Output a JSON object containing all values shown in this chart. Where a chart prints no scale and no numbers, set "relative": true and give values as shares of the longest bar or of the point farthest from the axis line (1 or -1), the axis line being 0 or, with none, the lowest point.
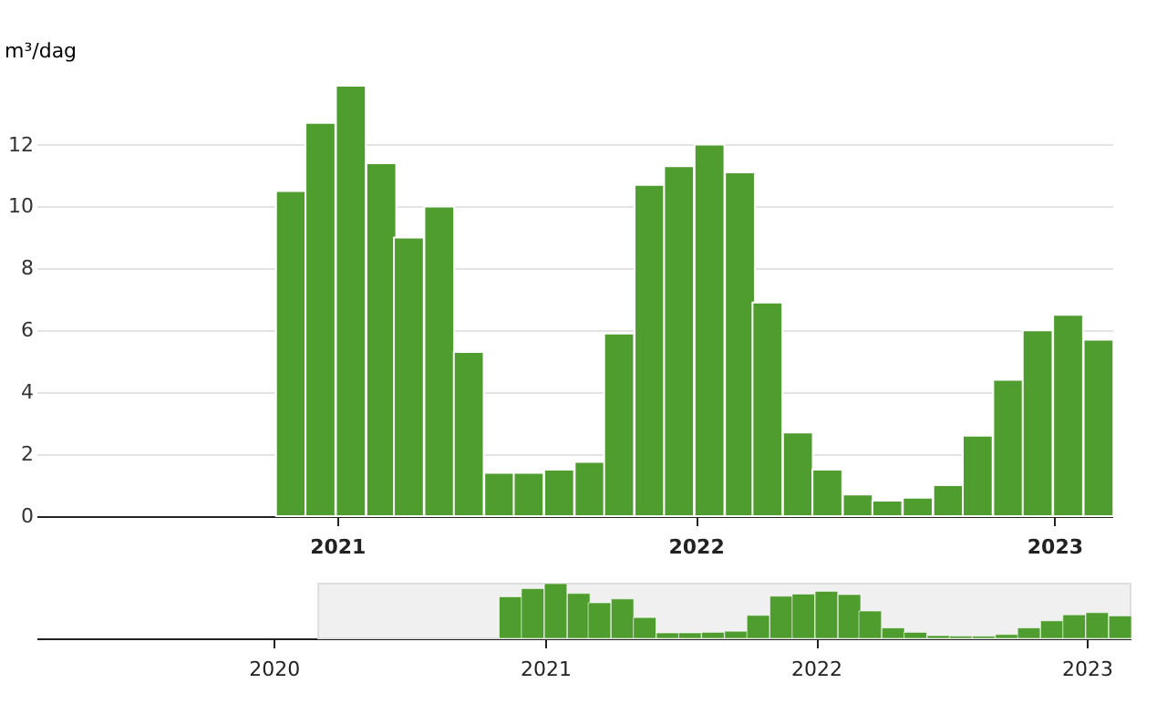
{
  "chart_data": [
    {
      "type": "bar",
      "ylabel": "m³/dag",
      "x": [
        "2020-11-15",
        "2020-12-15",
        "2021-01-15",
        "2021-02-15",
        "2021-03-15",
        "2021-04-15",
        "2021-05-15",
        "2021-06-15",
        "2021-07-15",
        "2021-08-15",
        "2021-09-15",
        "2021-10-15",
        "2021-11-15",
        "2021-12-15",
        "2022-01-15",
        "2022-02-15",
        "2022-03-15",
        "2022-04-15",
        "2022-05-15",
        "2022-06-15",
        "2022-07-15",
        "2022-08-15",
        "2022-09-15",
        "2022-10-15",
        "2022-11-15",
        "2022-12-15",
        "2023-01-15",
        "2023-02-15"
      ],
      "values": [
        10.5,
        12.7,
        13.9,
        11.4,
        9.0,
        10.0,
        5.3,
        1.4,
        1.4,
        1.5,
        1.75,
        5.9,
        10.7,
        11.3,
        12.0,
        11.1,
        6.9,
        2.7,
        1.5,
        0.7,
        0.5,
        0.6,
        1.0,
        2.6,
        4.4,
        6.0,
        6.5,
        5.7
      ],
      "color": "#4f9d2f",
      "xlim": [
        "2020-03-01",
        "2023-03-01"
      ],
      "xticks": [
        "2021",
        "2022",
        "2023"
      ],
      "ylim": [
        0,
        13.9
      ],
      "yticks": [
        0,
        2,
        4,
        6,
        8,
        10,
        12
      ],
      "grid": "y"
    },
    {
      "type": "bar",
      "relative": true,
      "x": [
        "2020-11-15",
        "2020-12-15",
        "2021-01-15",
        "2021-02-15",
        "2021-03-15",
        "2021-04-15",
        "2021-05-15",
        "2021-06-15",
        "2021-07-15",
        "2021-08-15",
        "2021-09-15",
        "2021-10-15",
        "2021-11-15",
        "2021-12-15",
        "2022-01-15",
        "2022-02-15",
        "2022-03-15",
        "2022-04-15",
        "2022-05-15",
        "2022-06-15",
        "2022-07-15",
        "2022-08-15",
        "2022-09-15",
        "2022-10-15",
        "2022-11-15",
        "2022-12-15",
        "2023-01-15",
        "2023-02-15"
      ],
      "values": [
        0.76,
        0.91,
        1,
        0.82,
        0.65,
        0.72,
        0.38,
        0.1,
        0.1,
        0.11,
        0.13,
        0.42,
        0.77,
        0.81,
        0.86,
        0.8,
        0.5,
        0.19,
        0.11,
        0.05,
        0.04,
        0.04,
        0.07,
        0.19,
        0.32,
        0.43,
        0.47,
        0.41
      ],
      "color": "#4f9d2f",
      "xlim": [
        "2019-02-15",
        "2023-03-01"
      ],
      "xticks": [
        "2020",
        "2021",
        "2022",
        "2023"
      ],
      "grid": false,
      "bands": [
        {
          "axis": "x",
          "from": "2020-03-01",
          "to": "2023-03-01",
          "color": "#f0f0f0"
        }
      ]
    }
  ]
}
